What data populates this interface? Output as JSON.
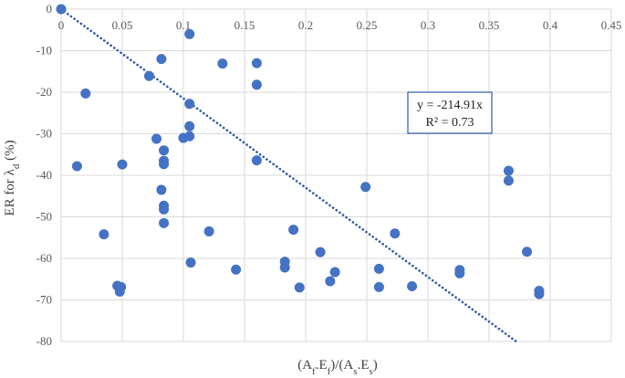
{
  "chart_data": {
    "type": "scatter",
    "title": "",
    "xlabel_parts": [
      "(A",
      "f",
      ".E",
      "f",
      ")/(A",
      "s",
      ".E",
      "s",
      ")"
    ],
    "ylabel_parts": [
      "ER for λ",
      "d",
      " (%)"
    ],
    "xlim": [
      0,
      0.45
    ],
    "ylim": [
      -80,
      0
    ],
    "x_ticks": [
      0,
      0.05,
      0.1,
      0.15,
      0.2,
      0.25,
      0.3,
      0.35,
      0.4,
      0.45
    ],
    "x_tick_labels": [
      "0",
      "0.05",
      "0.1",
      "0.15",
      "0.2",
      "0.25",
      "0.3",
      "0.35",
      "0.4",
      "0.45"
    ],
    "y_ticks": [
      0,
      -10,
      -20,
      -30,
      -40,
      -50,
      -60,
      -70,
      -80
    ],
    "y_tick_labels": [
      "0",
      "-10",
      "-20",
      "-30",
      "-40",
      "-50",
      "-60",
      "-70",
      "-80"
    ],
    "grid": true,
    "marker_color": "#4472c4",
    "trendline": {
      "type": "linear",
      "slope": -214.91,
      "intercept": 0,
      "color": "#2e5aa8",
      "style": "dotted",
      "equation_label": "y = -214.91x",
      "r2_label": "R² = 0.73"
    },
    "series": [
      {
        "name": "ER",
        "points": [
          [
            0.0,
            0.0
          ],
          [
            0.013,
            -37.8
          ],
          [
            0.02,
            -20.3
          ],
          [
            0.035,
            -54.2
          ],
          [
            0.046,
            -66.6
          ],
          [
            0.048,
            -68.0
          ],
          [
            0.049,
            -66.9
          ],
          [
            0.05,
            -37.4
          ],
          [
            0.072,
            -16.1
          ],
          [
            0.078,
            -31.2
          ],
          [
            0.082,
            -12.0
          ],
          [
            0.082,
            -43.5
          ],
          [
            0.084,
            -34.0
          ],
          [
            0.084,
            -36.5
          ],
          [
            0.084,
            -37.3
          ],
          [
            0.084,
            -47.3
          ],
          [
            0.084,
            -48.2
          ],
          [
            0.084,
            -51.5
          ],
          [
            0.1,
            -31.0
          ],
          [
            0.105,
            -6.0
          ],
          [
            0.105,
            -22.8
          ],
          [
            0.105,
            -28.2
          ],
          [
            0.105,
            -30.6
          ],
          [
            0.106,
            -61.0
          ],
          [
            0.121,
            -53.5
          ],
          [
            0.132,
            -13.1
          ],
          [
            0.143,
            -62.7
          ],
          [
            0.16,
            -13.0
          ],
          [
            0.16,
            -18.2
          ],
          [
            0.16,
            -36.4
          ],
          [
            0.183,
            -60.8
          ],
          [
            0.183,
            -62.2
          ],
          [
            0.19,
            -53.1
          ],
          [
            0.195,
            -67.0
          ],
          [
            0.212,
            -58.5
          ],
          [
            0.22,
            -65.5
          ],
          [
            0.224,
            -63.3
          ],
          [
            0.249,
            -42.8
          ],
          [
            0.26,
            -62.5
          ],
          [
            0.26,
            -66.9
          ],
          [
            0.273,
            -54.0
          ],
          [
            0.287,
            -66.7
          ],
          [
            0.326,
            -62.8
          ],
          [
            0.326,
            -63.6
          ],
          [
            0.366,
            -38.9
          ],
          [
            0.366,
            -41.3
          ],
          [
            0.381,
            -58.4
          ],
          [
            0.391,
            -67.8
          ],
          [
            0.391,
            -68.6
          ]
        ]
      }
    ]
  }
}
